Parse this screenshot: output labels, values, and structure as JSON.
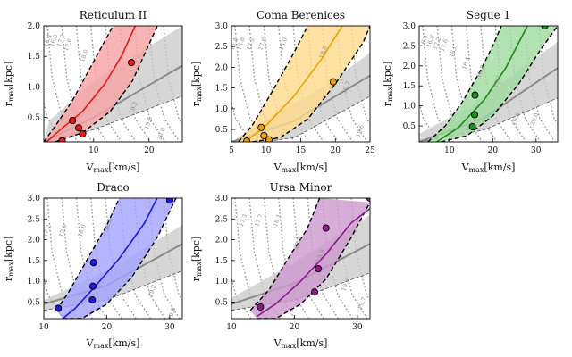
{
  "colors": {
    "gray_band": "#c8c8c8",
    "gray_line": "#8a8a8a",
    "contour": "#8c8c8c"
  },
  "chart_data": [
    {
      "type": "line",
      "title": "Reticulum II",
      "xlabel": "V_max[km/s]",
      "ylabel": "r_max[kpc]",
      "xlim": [
        1,
        26
      ],
      "ylim": [
        0.1,
        2.0
      ],
      "xticks": [
        "10",
        "20"
      ],
      "yticks": [
        "0.5",
        "1.0",
        "1.5",
        "2.0"
      ],
      "color": "#e41a1c",
      "fill": "#f7a3a3",
      "band_lower": [
        [
          3,
          0.1
        ],
        [
          8,
          0.25
        ],
        [
          13,
          0.6
        ],
        [
          17,
          1.1
        ],
        [
          20,
          1.7
        ],
        [
          21.5,
          2.0
        ]
      ],
      "band_upper": [
        [
          1,
          0.1
        ],
        [
          3,
          0.35
        ],
        [
          6,
          0.75
        ],
        [
          9,
          1.25
        ],
        [
          12,
          1.75
        ],
        [
          13.5,
          2.0
        ]
      ],
      "median": [
        [
          1.5,
          0.1
        ],
        [
          4,
          0.3
        ],
        [
          8,
          0.6
        ],
        [
          12,
          1.05
        ],
        [
          15,
          1.5
        ],
        [
          17.5,
          2.0
        ]
      ],
      "markers": [
        [
          4.3,
          0.12
        ],
        [
          6.2,
          0.45
        ],
        [
          7.3,
          0.33
        ],
        [
          8.0,
          0.23
        ],
        [
          16.8,
          1.4
        ]
      ],
      "gray_band": {
        "lower": [
          [
            1,
            0.1
          ],
          [
            10,
            0.3
          ],
          [
            26,
            0.85
          ]
        ],
        "upper": [
          [
            1,
            0.1
          ],
          [
            2,
            0.45
          ],
          [
            10,
            1.1
          ],
          [
            26,
            2.0
          ]
        ]
      },
      "gray_median": [
        [
          1,
          0.1
        ],
        [
          10,
          0.5
        ],
        [
          26,
          1.35
        ]
      ],
      "contour_labels": [
        {
          "text": "16.4",
          "at": [
            2.0,
            1.75
          ]
        },
        {
          "text": "16.8",
          "at": [
            3.1,
            1.75
          ]
        },
        {
          "text": "17.2",
          "at": [
            4.4,
            1.75
          ]
        },
        {
          "text": "17.6",
          "at": [
            5.7,
            1.68
          ]
        },
        {
          "text": "18.0",
          "at": [
            8.6,
            1.5
          ]
        },
        {
          "text": "19.2",
          "at": [
            17.5,
            0.65
          ]
        },
        {
          "text": "19.6",
          "at": [
            20.2,
            0.4
          ]
        },
        {
          "text": "20.0",
          "at": [
            22.5,
            0.22
          ]
        }
      ]
    },
    {
      "type": "line",
      "title": "Coma Berenices",
      "xlabel": "V_max[km/s]",
      "ylabel": "r_max[kpc]",
      "xlim": [
        5,
        25
      ],
      "ylim": [
        0.2,
        3.0
      ],
      "xticks": [
        "5",
        "10",
        "15",
        "20",
        "25"
      ],
      "yticks": [
        "0.5",
        "1.0",
        "1.5",
        "2.0",
        "2.5",
        "3.0"
      ],
      "color": "#f0a000",
      "fill": "#ffd98a",
      "band_lower": [
        [
          8,
          0.2
        ],
        [
          12,
          0.3
        ],
        [
          16,
          0.75
        ],
        [
          20,
          1.6
        ],
        [
          24,
          2.6
        ],
        [
          25,
          3.0
        ]
      ],
      "band_upper": [
        [
          6,
          0.2
        ],
        [
          8,
          0.6
        ],
        [
          11,
          1.45
        ],
        [
          14,
          2.35
        ],
        [
          16,
          3.0
        ]
      ],
      "median": [
        [
          7,
          0.2
        ],
        [
          10,
          0.6
        ],
        [
          14,
          1.3
        ],
        [
          18,
          2.2
        ],
        [
          21,
          3.0
        ]
      ],
      "markers": [
        [
          7.2,
          0.22
        ],
        [
          9.3,
          0.55
        ],
        [
          9.7,
          0.35
        ],
        [
          10.4,
          0.25
        ],
        [
          19.7,
          1.65
        ]
      ],
      "gray_band": {
        "lower": [
          [
            5,
            0.1
          ],
          [
            14,
            0.3
          ],
          [
            25,
            1.3
          ]
        ],
        "upper": [
          [
            5,
            0.2
          ],
          [
            10,
            0.75
          ],
          [
            18,
            1.5
          ],
          [
            25,
            2.35
          ]
        ]
      },
      "gray_median": [
        [
          5,
          0.2
        ],
        [
          14,
          0.7
        ],
        [
          25,
          1.8
        ]
      ],
      "contour_labels": [
        {
          "text": "16.4",
          "at": [
            5.6,
            2.55
          ]
        },
        {
          "text": "16.8",
          "at": [
            6.6,
            2.55
          ]
        },
        {
          "text": "17.2",
          "at": [
            8.0,
            2.55
          ]
        },
        {
          "text": "17.6",
          "at": [
            9.7,
            2.55
          ]
        },
        {
          "text": "18.0",
          "at": [
            12.7,
            2.55
          ]
        },
        {
          "text": "18.8",
          "at": [
            18.5,
            2.35
          ]
        },
        {
          "text": "19.2",
          "at": [
            21.8,
            1.5
          ]
        },
        {
          "text": "19.6",
          "at": [
            23.8,
            0.45
          ]
        }
      ]
    },
    {
      "type": "line",
      "title": "Segue 1",
      "xlabel": "V_max[km/s]",
      "ylabel": "r_max[kpc]",
      "xlim": [
        3,
        35
      ],
      "ylim": [
        0.1,
        3.0
      ],
      "xticks": [
        "10",
        "20",
        "30"
      ],
      "yticks": [
        "0.5",
        "1.0",
        "1.5",
        "2.0",
        "2.5",
        "3.0"
      ],
      "color": "#1a8c1a",
      "fill": "#9fd99f",
      "band_lower": [
        [
          8,
          0.1
        ],
        [
          14,
          0.25
        ],
        [
          20,
          0.75
        ],
        [
          26,
          1.55
        ],
        [
          31,
          2.4
        ],
        [
          35,
          3.0
        ]
      ],
      "band_upper": [
        [
          5,
          0.1
        ],
        [
          9,
          0.5
        ],
        [
          13,
          1.1
        ],
        [
          17,
          1.85
        ],
        [
          20,
          2.5
        ],
        [
          22,
          3.0
        ]
      ],
      "median": [
        [
          7,
          0.1
        ],
        [
          12,
          0.45
        ],
        [
          18,
          1.15
        ],
        [
          23,
          1.95
        ],
        [
          28,
          3.0
        ]
      ],
      "markers": [
        [
          15.3,
          0.48
        ],
        [
          15.8,
          0.78
        ],
        [
          15.9,
          1.27
        ],
        [
          32.0,
          3.0
        ]
      ],
      "gray_band": {
        "lower": [
          [
            3,
            0.1
          ],
          [
            18,
            0.4
          ],
          [
            35,
            1.2
          ]
        ],
        "upper": [
          [
            3,
            0.3
          ],
          [
            15,
            1.0
          ],
          [
            35,
            2.6
          ]
        ]
      },
      "gray_median": [
        [
          3,
          0.1
        ],
        [
          18,
          0.7
        ],
        [
          35,
          1.95
        ]
      ],
      "contour_labels": [
        {
          "text": "16.4",
          "at": [
            4.5,
            2.6
          ]
        },
        {
          "text": "16.8",
          "at": [
            6.0,
            2.6
          ]
        },
        {
          "text": "17.2",
          "at": [
            7.5,
            2.55
          ]
        },
        {
          "text": "17.6",
          "at": [
            9.1,
            2.5
          ]
        },
        {
          "text": "18.0",
          "at": [
            11.3,
            2.35
          ]
        },
        {
          "text": "18.4",
          "at": [
            14.2,
            2.05
          ]
        },
        {
          "text": "18.8",
          "at": [
            17.6,
            1.85
          ]
        },
        {
          "text": "19.2",
          "at": [
            21.4,
            1.6
          ]
        },
        {
          "text": "19.6",
          "at": [
            25.8,
            0.65
          ]
        },
        {
          "text": "20.0",
          "at": [
            30.0,
            0.65
          ]
        }
      ]
    },
    {
      "type": "line",
      "title": "Draco",
      "xlabel": "V_max[km/s]",
      "ylabel": "r_max[kpc]",
      "xlim": [
        10,
        32
      ],
      "ylim": [
        0.1,
        3.0
      ],
      "xticks": [
        "10",
        "20",
        "30"
      ],
      "yticks": [
        "0.5",
        "1.0",
        "1.5",
        "2.0",
        "2.5",
        "3.0"
      ],
      "color": "#1a1ae6",
      "fill": "#a3a3ff",
      "band_lower": [
        [
          13,
          0.1
        ],
        [
          16,
          0.1
        ],
        [
          20,
          0.45
        ],
        [
          24,
          1.1
        ],
        [
          28,
          2.05
        ],
        [
          31,
          3.0
        ]
      ],
      "band_upper": [
        [
          12,
          0.3
        ],
        [
          14,
          0.75
        ],
        [
          17,
          1.55
        ],
        [
          20,
          2.35
        ],
        [
          22,
          3.0
        ]
      ],
      "median": [
        [
          13,
          0.1
        ],
        [
          15,
          0.35
        ],
        [
          18,
          0.85
        ],
        [
          22,
          1.55
        ],
        [
          26,
          2.4
        ],
        [
          28,
          3.0
        ]
      ],
      "markers": [
        [
          12.3,
          0.35
        ],
        [
          17.7,
          0.55
        ],
        [
          17.8,
          0.88
        ],
        [
          17.9,
          1.45
        ],
        [
          30.0,
          2.95
        ]
      ],
      "gray_band": {
        "lower": [
          [
            10,
            0.3
          ],
          [
            20,
            0.55
          ],
          [
            32,
            1.25
          ]
        ],
        "upper": [
          [
            10,
            0.55
          ],
          [
            20,
            1.25
          ],
          [
            32,
            2.35
          ]
        ]
      },
      "gray_median": [
        [
          10,
          0.45
        ],
        [
          20,
          0.9
        ],
        [
          32,
          1.9
        ]
      ],
      "contour_labels": [
        {
          "text": "17.2",
          "at": [
            10.8,
            2.2
          ]
        },
        {
          "text": "17.6",
          "at": [
            13.3,
            2.2
          ]
        },
        {
          "text": "18.0",
          "at": [
            16.3,
            2.2
          ]
        },
        {
          "text": "18.8",
          "at": [
            20.5,
            2.35
          ]
        },
        {
          "text": "19.2",
          "at": [
            27.5,
            0.75
          ]
        },
        {
          "text": "19.6",
          "at": [
            30.6,
            0.2
          ]
        }
      ]
    },
    {
      "type": "line",
      "title": "Ursa Minor",
      "xlabel": "V_max[km/s]",
      "ylabel": "r_max[kpc]",
      "xlim": [
        10,
        32
      ],
      "ylim": [
        0.1,
        3.0
      ],
      "xticks": [
        "10",
        "20",
        "30"
      ],
      "yticks": [
        "0.5",
        "1.0",
        "1.5",
        "2.0",
        "2.5",
        "3.0"
      ],
      "color": "#8b1a8b",
      "fill": "#cc99cc",
      "band_lower": [
        [
          14,
          0.1
        ],
        [
          17,
          0.1
        ],
        [
          21,
          0.45
        ],
        [
          25,
          1.05
        ],
        [
          29,
          2.05
        ],
        [
          32,
          2.9
        ]
      ],
      "band_upper": [
        [
          13,
          0.3
        ],
        [
          16,
          0.8
        ],
        [
          19,
          1.55
        ],
        [
          22,
          2.25
        ],
        [
          24,
          3.0
        ]
      ],
      "median": [
        [
          14,
          0.15
        ],
        [
          17,
          0.45
        ],
        [
          21,
          1.0
        ],
        [
          25,
          1.65
        ],
        [
          29,
          2.4
        ],
        [
          32,
          2.75
        ]
      ],
      "markers": [
        [
          14.6,
          0.38
        ],
        [
          23.2,
          0.74
        ],
        [
          23.8,
          1.3
        ],
        [
          25.0,
          2.28
        ],
        [
          32.0,
          3.0
        ]
      ],
      "gray_band": {
        "lower": [
          [
            10,
            0.3
          ],
          [
            20,
            0.55
          ],
          [
            32,
            1.2
          ]
        ],
        "upper": [
          [
            10,
            0.6
          ],
          [
            20,
            1.45
          ],
          [
            32,
            2.6
          ]
        ]
      },
      "gray_median": [
        [
          10,
          0.45
        ],
        [
          20,
          0.95
        ],
        [
          32,
          1.9
        ]
      ],
      "contour_labels": [
        {
          "text": "17.3",
          "at": [
            12.1,
            2.45
          ]
        },
        {
          "text": "17.7",
          "at": [
            14.6,
            2.45
          ]
        },
        {
          "text": "18.1",
          "at": [
            17.5,
            2.45
          ]
        },
        {
          "text": "18.5",
          "at": [
            20.8,
            1.9
          ]
        },
        {
          "text": "18.9",
          "at": [
            24.4,
            1.6
          ]
        },
        {
          "text": "19.3",
          "at": [
            28.4,
            0.9
          ]
        },
        {
          "text": "19.7",
          "at": [
            31.0,
            0.45
          ]
        }
      ]
    }
  ]
}
